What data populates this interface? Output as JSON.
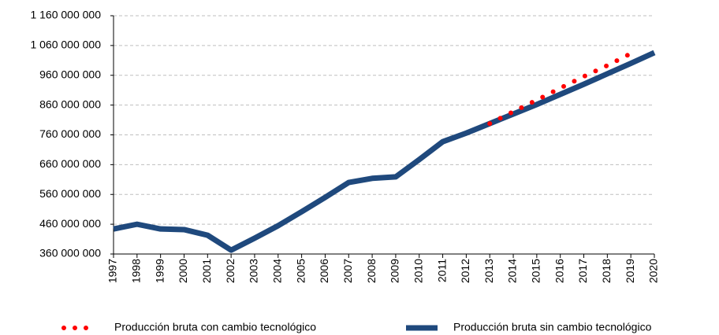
{
  "chart_data": {
    "type": "line",
    "categories": [
      "1997",
      "1998",
      "1999",
      "2000",
      "2001",
      "2002",
      "2003",
      "2004",
      "2005",
      "2006",
      "2007",
      "2008",
      "2009",
      "2010",
      "2011",
      "2012",
      "2013",
      "2014",
      "2015",
      "2016",
      "2017",
      "2018",
      "2019",
      "2020"
    ],
    "series": [
      {
        "name": "Producción bruta con cambio tecnológico",
        "color": "#ff0000",
        "style": "dotted",
        "values": [
          null,
          null,
          null,
          null,
          null,
          null,
          null,
          null,
          null,
          null,
          null,
          null,
          null,
          null,
          null,
          null,
          798000000,
          838000000,
          877000000,
          917000000,
          956000000,
          993000000,
          1033000000,
          null
        ]
      },
      {
        "name": "Producción bruta sin cambio tecnológico",
        "color": "#1f497d",
        "style": "solid",
        "values": [
          444000000,
          460000000,
          444000000,
          442000000,
          423000000,
          373000000,
          413000000,
          455000000,
          502000000,
          550000000,
          600000000,
          614000000,
          619000000,
          677000000,
          737000000,
          766000000,
          798000000,
          830000000,
          862000000,
          896000000,
          930000000,
          965000000,
          1000000000,
          1036000000
        ]
      }
    ],
    "ylim": [
      360000000,
      1160000000
    ],
    "yticks": [
      {
        "value": 360000000,
        "label": "360 000 000"
      },
      {
        "value": 460000000,
        "label": "460 000 000"
      },
      {
        "value": 560000000,
        "label": "560 000 000"
      },
      {
        "value": 660000000,
        "label": "660 000 000"
      },
      {
        "value": 760000000,
        "label": "760 000 000"
      },
      {
        "value": 860000000,
        "label": "860 000 000"
      },
      {
        "value": 960000000,
        "label": "960 000 000"
      },
      {
        "value": 1060000000,
        "label": "1 060 000 000"
      },
      {
        "value": 1160000000,
        "label": "1 160 000 000"
      }
    ],
    "grid": true,
    "legend": "bottom"
  }
}
